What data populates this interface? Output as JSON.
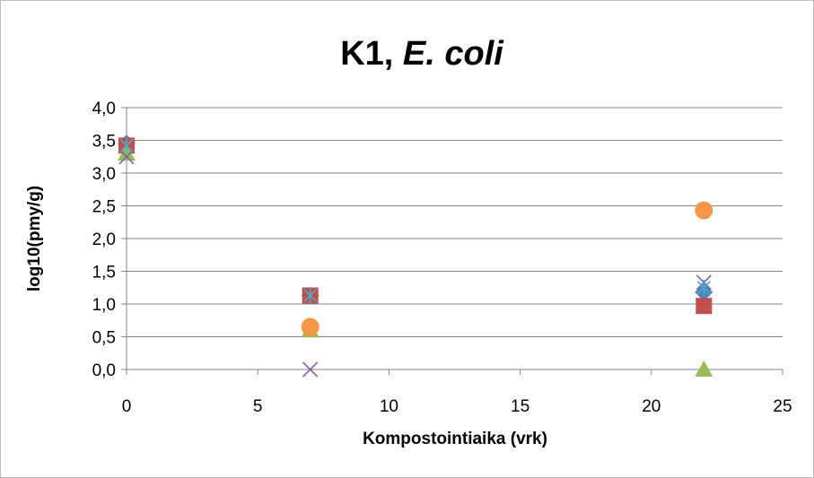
{
  "chart_data": {
    "type": "scatter",
    "title": "K1, ",
    "title_italic": "E. coli",
    "xlabel": "Kompostointiaika (vrk)",
    "ylabel": "log10(pmy/g)",
    "xlim": [
      0,
      25
    ],
    "ylim": [
      0,
      4
    ],
    "x_ticks": [
      0,
      5,
      10,
      15,
      20,
      25
    ],
    "x_tick_labels": [
      "0",
      "5",
      "10",
      "15",
      "20",
      "25"
    ],
    "y_ticks": [
      0,
      0.5,
      1,
      1.5,
      2,
      2.5,
      3,
      3.5,
      4
    ],
    "y_tick_labels": [
      "0,0",
      "0,5",
      "1,0",
      "1,5",
      "2,0",
      "2,5",
      "3,0",
      "3,5",
      "4,0"
    ],
    "grid": "horizontal",
    "legend": "none",
    "series": [
      {
        "marker": "diamond",
        "color": "#4f81bd",
        "points": [
          [
            0,
            3.45
          ],
          [
            7,
            1.13
          ],
          [
            22,
            1.18
          ]
        ]
      },
      {
        "marker": "square",
        "color": "#c0504d",
        "points": [
          [
            0,
            3.42
          ],
          [
            7,
            1.13
          ],
          [
            22,
            0.97
          ]
        ]
      },
      {
        "marker": "triangle",
        "color": "#9bbb59",
        "points": [
          [
            0,
            3.3
          ],
          [
            7,
            0.6
          ],
          [
            22,
            0.0
          ]
        ]
      },
      {
        "marker": "x",
        "color": "#8064a2",
        "points": [
          [
            0,
            3.25
          ],
          [
            7,
            0.0
          ],
          [
            22,
            1.33
          ]
        ]
      },
      {
        "marker": "asterisk",
        "color": "#4bacc6",
        "points": [
          [
            0,
            3.42
          ],
          [
            7,
            1.13
          ],
          [
            22,
            1.25
          ]
        ]
      },
      {
        "marker": "circle",
        "color": "#f79646",
        "points": [
          [
            7,
            0.65
          ],
          [
            22,
            2.43
          ]
        ]
      }
    ]
  }
}
